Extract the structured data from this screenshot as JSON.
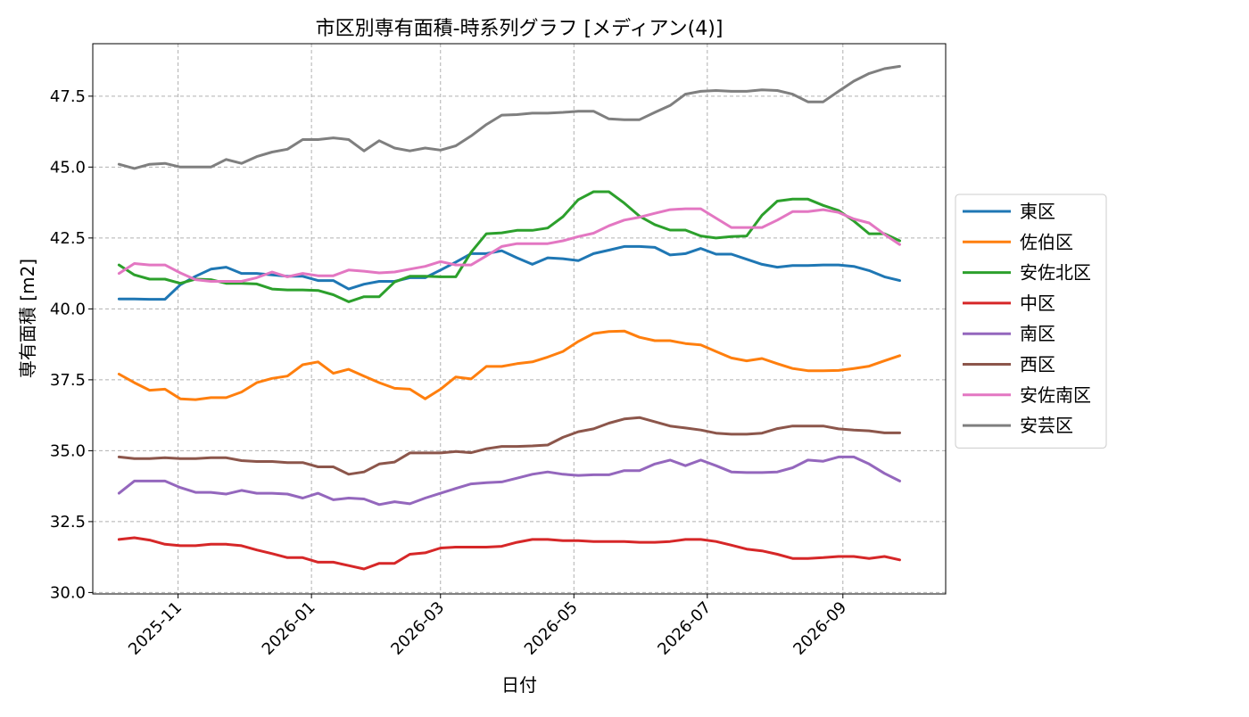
{
  "chart_data": {
    "type": "line",
    "title": "市区別専有面積-時系列グラフ [メディアン(4)]",
    "xlabel": "日付",
    "ylabel": "専有面積 [m2]",
    "xlim": [
      "2025-09-23",
      "2026-10-18"
    ],
    "ylim": [
      29.95,
      49.35
    ],
    "yticks": [
      30.0,
      32.5,
      35.0,
      37.5,
      40.0,
      42.5,
      45.0,
      47.5
    ],
    "ytick_labels": [
      "30.0",
      "32.5",
      "35.0",
      "37.5",
      "40.0",
      "42.5",
      "45.0",
      "47.5"
    ],
    "xticks": [
      "2025-11-01",
      "2026-01-01",
      "2026-03-01",
      "2026-05-01",
      "2026-07-01",
      "2026-09-01"
    ],
    "xtick_labels": [
      "2025-11",
      "2026-01",
      "2026-03",
      "2026-05",
      "2026-07",
      "2026-09"
    ],
    "grid": true,
    "legend_position": "right",
    "x": [
      "2025-10-05",
      "2025-10-12",
      "2025-10-19",
      "2025-10-26",
      "2025-11-02",
      "2025-11-09",
      "2025-11-16",
      "2025-11-23",
      "2025-11-30",
      "2025-12-07",
      "2025-12-14",
      "2025-12-21",
      "2025-12-28",
      "2026-01-04",
      "2026-01-11",
      "2026-01-18",
      "2026-01-25",
      "2026-02-01",
      "2026-02-08",
      "2026-02-15",
      "2026-02-22",
      "2026-03-01",
      "2026-03-08",
      "2026-03-15",
      "2026-03-22",
      "2026-03-29",
      "2026-04-05",
      "2026-04-12",
      "2026-04-19",
      "2026-04-26",
      "2026-05-03",
      "2026-05-10",
      "2026-05-17",
      "2026-05-24",
      "2026-05-31",
      "2026-06-07",
      "2026-06-14",
      "2026-06-21",
      "2026-06-28",
      "2026-07-05",
      "2026-07-12",
      "2026-07-19",
      "2026-07-26",
      "2026-08-02",
      "2026-08-09",
      "2026-08-16",
      "2026-08-23",
      "2026-08-30",
      "2026-09-06",
      "2026-09-13",
      "2026-09-20",
      "2026-09-27"
    ],
    "series": [
      {
        "name": "東区",
        "color": "#1f77b4",
        "values": [
          40.35,
          40.35,
          40.34,
          40.34,
          40.85,
          41.15,
          41.4,
          41.47,
          41.25,
          41.25,
          41.2,
          41.15,
          41.15,
          41.0,
          41.0,
          40.7,
          40.87,
          40.97,
          40.97,
          41.1,
          41.1,
          41.37,
          41.65,
          41.95,
          41.95,
          42.05,
          41.8,
          41.57,
          41.8,
          41.77,
          41.7,
          41.95,
          42.07,
          42.2,
          42.2,
          42.17,
          41.9,
          41.95,
          42.13,
          41.93,
          41.93,
          41.75,
          41.57,
          41.47,
          41.53,
          41.53,
          41.55,
          41.55,
          41.5,
          41.35,
          41.13,
          41.0
        ]
      },
      {
        "name": "佐伯区",
        "color": "#ff7f0e",
        "values": [
          37.7,
          37.4,
          37.13,
          37.17,
          36.83,
          36.8,
          36.87,
          36.87,
          37.07,
          37.4,
          37.55,
          37.63,
          38.03,
          38.13,
          37.73,
          37.87,
          37.63,
          37.4,
          37.2,
          37.17,
          36.83,
          37.17,
          37.6,
          37.53,
          37.97,
          37.97,
          38.07,
          38.13,
          38.3,
          38.5,
          38.85,
          39.13,
          39.2,
          39.22,
          39.0,
          38.88,
          38.88,
          38.78,
          38.73,
          38.5,
          38.27,
          38.17,
          38.25,
          38.07,
          37.9,
          37.82,
          37.82,
          37.83,
          37.9,
          37.98,
          38.17,
          38.35
        ]
      },
      {
        "name": "安佐北区",
        "color": "#2ca02c",
        "values": [
          41.55,
          41.2,
          41.05,
          41.05,
          40.9,
          41.05,
          41.03,
          40.9,
          40.9,
          40.88,
          40.7,
          40.67,
          40.67,
          40.65,
          40.5,
          40.25,
          40.43,
          40.43,
          40.95,
          41.15,
          41.15,
          41.13,
          41.13,
          42.0,
          42.65,
          42.68,
          42.77,
          42.77,
          42.85,
          43.25,
          43.85,
          44.13,
          44.13,
          43.73,
          43.27,
          42.97,
          42.78,
          42.78,
          42.57,
          42.5,
          42.55,
          42.57,
          43.3,
          43.8,
          43.87,
          43.87,
          43.65,
          43.47,
          43.1,
          42.65,
          42.65,
          42.4
        ]
      },
      {
        "name": "中区",
        "color": "#d62728",
        "values": [
          31.87,
          31.93,
          31.85,
          31.7,
          31.65,
          31.65,
          31.7,
          31.7,
          31.65,
          31.5,
          31.37,
          31.23,
          31.23,
          31.07,
          31.07,
          30.95,
          30.83,
          31.03,
          31.03,
          31.35,
          31.4,
          31.57,
          31.6,
          31.6,
          31.6,
          31.63,
          31.77,
          31.87,
          31.87,
          31.83,
          31.83,
          31.8,
          31.8,
          31.8,
          31.77,
          31.77,
          31.8,
          31.87,
          31.87,
          31.8,
          31.67,
          31.53,
          31.47,
          31.35,
          31.2,
          31.2,
          31.23,
          31.27,
          31.27,
          31.2,
          31.27,
          31.15
        ]
      },
      {
        "name": "南区",
        "color": "#9467bd",
        "values": [
          33.5,
          33.93,
          33.93,
          33.93,
          33.7,
          33.53,
          33.53,
          33.47,
          33.6,
          33.5,
          33.5,
          33.47,
          33.33,
          33.5,
          33.27,
          33.33,
          33.3,
          33.1,
          33.2,
          33.13,
          33.33,
          33.5,
          33.67,
          33.83,
          33.87,
          33.9,
          34.03,
          34.17,
          34.25,
          34.17,
          34.13,
          34.15,
          34.15,
          34.3,
          34.3,
          34.53,
          34.67,
          34.47,
          34.67,
          34.47,
          34.25,
          34.23,
          34.23,
          34.25,
          34.4,
          34.67,
          34.63,
          34.78,
          34.78,
          34.53,
          34.2,
          33.93
        ]
      },
      {
        "name": "西区",
        "color": "#8c564b",
        "values": [
          34.78,
          34.72,
          34.72,
          34.75,
          34.72,
          34.72,
          34.75,
          34.75,
          34.65,
          34.62,
          34.62,
          34.58,
          34.58,
          34.43,
          34.43,
          34.17,
          34.25,
          34.53,
          34.6,
          34.92,
          34.92,
          34.92,
          34.97,
          34.93,
          35.07,
          35.15,
          35.15,
          35.17,
          35.2,
          35.47,
          35.67,
          35.77,
          35.97,
          36.12,
          36.17,
          36.02,
          35.87,
          35.8,
          35.73,
          35.62,
          35.58,
          35.58,
          35.62,
          35.78,
          35.87,
          35.87,
          35.87,
          35.77,
          35.73,
          35.7,
          35.63,
          35.63
        ]
      },
      {
        "name": "安佐南区",
        "color": "#e377c2",
        "values": [
          41.25,
          41.6,
          41.55,
          41.55,
          41.27,
          41.03,
          40.97,
          40.97,
          40.97,
          41.1,
          41.3,
          41.13,
          41.25,
          41.17,
          41.17,
          41.37,
          41.33,
          41.27,
          41.3,
          41.4,
          41.5,
          41.67,
          41.55,
          41.55,
          41.87,
          42.2,
          42.3,
          42.3,
          42.3,
          42.4,
          42.55,
          42.67,
          42.93,
          43.13,
          43.23,
          43.37,
          43.5,
          43.53,
          43.53,
          43.2,
          42.87,
          42.87,
          42.87,
          43.13,
          43.43,
          43.43,
          43.5,
          43.4,
          43.17,
          43.03,
          42.63,
          42.27
        ]
      },
      {
        "name": "安芸区",
        "color": "#7f7f7f",
        "values": [
          45.1,
          44.95,
          45.1,
          45.13,
          45.0,
          45.0,
          45.0,
          45.27,
          45.13,
          45.37,
          45.53,
          45.63,
          45.97,
          45.97,
          46.03,
          45.97,
          45.57,
          45.93,
          45.67,
          45.57,
          45.67,
          45.6,
          45.75,
          46.1,
          46.5,
          46.83,
          46.85,
          46.9,
          46.9,
          46.93,
          46.97,
          46.97,
          46.7,
          46.67,
          46.67,
          46.93,
          47.17,
          47.57,
          47.67,
          47.7,
          47.67,
          47.67,
          47.72,
          47.7,
          47.57,
          47.3,
          47.3,
          47.67,
          48.03,
          48.3,
          48.47,
          48.55
        ]
      }
    ]
  }
}
